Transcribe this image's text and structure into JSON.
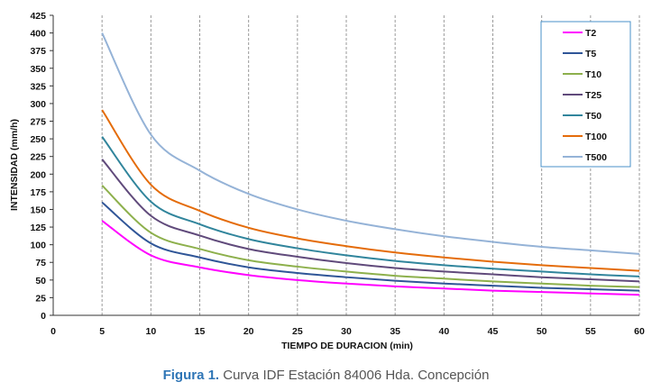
{
  "chart_data": {
    "type": "line",
    "title": "",
    "xlabel": "TIEMPO DE DURACION (min)",
    "ylabel": "INTENSIDAD (mm/h)",
    "xlim": [
      0,
      60
    ],
    "ylim": [
      0,
      425
    ],
    "xticks": [
      "0",
      "5",
      "10",
      "15",
      "20",
      "25",
      "30",
      "35",
      "40",
      "45",
      "50",
      "55",
      "60"
    ],
    "yticks": [
      "0",
      "25",
      "50",
      "75",
      "100",
      "125",
      "150",
      "175",
      "200",
      "225",
      "250",
      "275",
      "300",
      "325",
      "350",
      "375",
      "400",
      "425"
    ],
    "grid": "vertical",
    "legend_position": "top-right",
    "x": [
      5,
      10,
      15,
      20,
      25,
      30,
      35,
      40,
      45,
      50,
      55,
      60
    ],
    "series": [
      {
        "name": "T2",
        "color": "#ff00ff",
        "values": [
          134,
          85,
          68,
          57,
          50,
          45,
          41,
          38,
          35,
          33,
          31,
          29
        ]
      },
      {
        "name": "T5",
        "color": "#2f5597",
        "values": [
          160,
          102,
          82,
          68,
          60,
          54,
          49,
          45,
          42,
          39,
          37,
          35
        ]
      },
      {
        "name": "T10",
        "color": "#8db04c",
        "values": [
          184,
          117,
          94,
          78,
          69,
          62,
          56,
          52,
          48,
          45,
          42,
          40
        ]
      },
      {
        "name": "T25",
        "color": "#604a7b",
        "values": [
          221,
          141,
          113,
          94,
          83,
          74,
          67,
          62,
          58,
          54,
          51,
          48
        ]
      },
      {
        "name": "T50",
        "color": "#31859c",
        "values": [
          253,
          161,
          129,
          108,
          95,
          85,
          77,
          71,
          66,
          62,
          58,
          55
        ]
      },
      {
        "name": "T100",
        "color": "#e46c0a",
        "values": [
          291,
          185,
          148,
          124,
          109,
          98,
          89,
          82,
          76,
          71,
          67,
          63
        ]
      },
      {
        "name": "T500",
        "color": "#95b3d7",
        "values": [
          400,
          256,
          205,
          172,
          150,
          134,
          122,
          112,
          104,
          97,
          92,
          87
        ]
      }
    ]
  },
  "caption": {
    "label": "Figura 1.",
    "text": " Curva IDF Estación 84006 Hda. Concepción"
  }
}
